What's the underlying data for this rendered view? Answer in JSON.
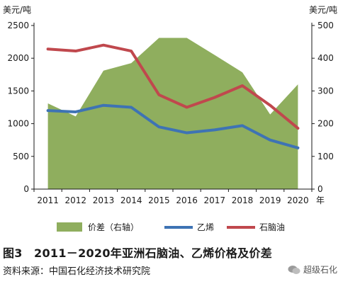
{
  "chart_data": {
    "type": "area+line",
    "categories": [
      "2011",
      "2012",
      "2013",
      "2014",
      "2015",
      "2016",
      "2017",
      "2018",
      "2019",
      "2020"
    ],
    "y_left": {
      "unit": "美元/吨",
      "ylim": [
        0,
        2500
      ],
      "ticks": [
        0,
        500,
        1000,
        1500,
        2000,
        2500
      ]
    },
    "y_right": {
      "unit": "美元/吨",
      "ylim": [
        0,
        500
      ],
      "ticks": [
        0,
        100,
        200,
        300,
        400,
        500
      ]
    },
    "x_unit": "年",
    "series": [
      {
        "name": "价差（右轴）",
        "kind": "area",
        "axis": "right",
        "color": "#8fae5e",
        "values": [
          262,
          222,
          362,
          385,
          462,
          462,
          410,
          357,
          228,
          320
        ]
      },
      {
        "name": "乙烯",
        "kind": "line",
        "axis": "left",
        "color": "#3e73b4",
        "values": [
          1200,
          1180,
          1280,
          1250,
          950,
          860,
          905,
          970,
          750,
          630
        ]
      },
      {
        "name": "石脑油",
        "kind": "line",
        "axis": "left",
        "color": "#c0484d",
        "values": [
          2140,
          2110,
          2200,
          2110,
          1440,
          1250,
          1400,
          1580,
          1280,
          930
        ]
      }
    ],
    "legend_position": "bottom",
    "grid": false
  },
  "caption": "图3　2011－2020年亚洲石脑油、乙烯价格及价差",
  "source": "资料来源：中国石化经济技术研究院",
  "watermark": "超级石化"
}
